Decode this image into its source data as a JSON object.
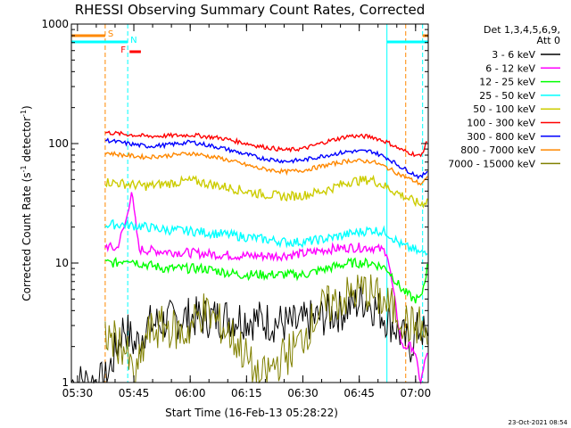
{
  "chart_data": {
    "type": "line",
    "title": "RHESSI Observing Summary Count Rates, Corrected",
    "xlabel": "Start Time (16-Feb-13 05:28:22)",
    "ylabel_main": "Corrected Count Rate (s",
    "ylabel_sup1": "-1",
    "ylabel_mid": " detector",
    "ylabel_sup2": "-1",
    "ylabel_end": ")",
    "yscale": "log",
    "ylim": [
      1,
      1000
    ],
    "y_ticks": [
      {
        "value": 1,
        "label": "1"
      },
      {
        "value": 10,
        "label": "10"
      },
      {
        "value": 100,
        "label": "100"
      },
      {
        "value": 1000,
        "label": "1000"
      }
    ],
    "xlim_minutes": [
      0,
      95
    ],
    "x_ticks": [
      {
        "minute": 1.63,
        "label": "05:30"
      },
      {
        "minute": 16.63,
        "label": "05:45"
      },
      {
        "minute": 31.63,
        "label": "06:00"
      },
      {
        "minute": 46.63,
        "label": "06:15"
      },
      {
        "minute": 61.63,
        "label": "06:30"
      },
      {
        "minute": 76.63,
        "label": "06:45"
      },
      {
        "minute": 91.63,
        "label": "07:00"
      }
    ],
    "legend_header": [
      "Det 1,3,4,5,6,9,",
      "Att 0"
    ],
    "legend_placement": "right",
    "series": [
      {
        "name": "3 - 6 keV",
        "color": "#000000",
        "x_minutes": [
          0,
          9,
          14,
          17,
          20,
          30,
          45,
          60,
          66,
          72,
          78,
          82,
          86,
          90,
          93,
          95
        ],
        "values": [
          1,
          1,
          3,
          2,
          3,
          3.5,
          3.5,
          3,
          3.5,
          4,
          5,
          4,
          3,
          2,
          3,
          2
        ]
      },
      {
        "name": "6 - 12 keV",
        "color": "#ff00ff",
        "x_minutes": [
          9,
          12,
          14.5,
          16,
          18,
          25,
          35,
          45,
          55,
          62,
          68,
          74,
          80,
          84,
          88,
          91,
          93,
          95
        ],
        "values": [
          14,
          13,
          22,
          40,
          13,
          12.5,
          12,
          11.5,
          11.5,
          12,
          13,
          13.5,
          13.5,
          12.5,
          2,
          2,
          1,
          2
        ]
      },
      {
        "name": "12 - 25 keV",
        "color": "#00ff00",
        "x_minutes": [
          9,
          12,
          15,
          18,
          25,
          35,
          45,
          55,
          62,
          68,
          74,
          80,
          84,
          88,
          91,
          93,
          95
        ],
        "values": [
          10,
          10,
          11,
          10,
          9,
          9,
          8,
          8,
          8,
          9,
          10,
          10,
          9,
          6,
          5,
          5,
          10
        ]
      },
      {
        "name": "25 - 50 keV",
        "color": "#00ffff",
        "x_minutes": [
          9,
          14,
          20,
          25,
          32,
          40,
          50,
          57,
          62,
          68,
          74,
          80,
          84,
          88,
          91,
          93,
          95
        ],
        "values": [
          21,
          21,
          20,
          19,
          18.5,
          17.5,
          16,
          15,
          15,
          16,
          17.5,
          19,
          18,
          14,
          13,
          12,
          13
        ]
      },
      {
        "name": "50 - 100 keV",
        "color": "#cccc00",
        "x_minutes": [
          9,
          14,
          20,
          25,
          32,
          40,
          50,
          57,
          62,
          68,
          74,
          80,
          84,
          88,
          91,
          93,
          95
        ],
        "values": [
          48,
          46,
          44,
          46,
          49,
          44,
          38,
          36,
          37,
          41,
          48,
          50,
          43,
          37,
          33,
          31,
          34
        ]
      },
      {
        "name": "100 - 300 keV",
        "color": "#ff0000",
        "x_minutes": [
          9,
          14,
          20,
          25,
          32,
          40,
          50,
          57,
          62,
          68,
          74,
          80,
          84,
          88,
          91,
          93,
          95
        ],
        "values": [
          124,
          120,
          115,
          116,
          118,
          111,
          95,
          88,
          91,
          104,
          116,
          114,
          103,
          88,
          82,
          78,
          110
        ]
      },
      {
        "name": "300 - 800 keV",
        "color": "#0000ff",
        "x_minutes": [
          9,
          14,
          20,
          25,
          32,
          40,
          50,
          57,
          62,
          68,
          74,
          80,
          84,
          88,
          91,
          93,
          95
        ],
        "values": [
          107,
          101,
          95,
          97,
          103,
          92,
          76,
          71,
          73,
          80,
          86,
          86,
          76,
          63,
          56,
          52,
          60
        ]
      },
      {
        "name": "800 - 7000 keV",
        "color": "#ff8800",
        "x_minutes": [
          9,
          14,
          20,
          25,
          32,
          40,
          50,
          57,
          62,
          68,
          74,
          80,
          84,
          88,
          91,
          93,
          95
        ],
        "values": [
          84,
          80,
          77,
          79,
          83,
          75,
          62,
          58,
          60,
          66,
          72,
          71,
          63,
          54,
          49,
          46,
          52
        ]
      },
      {
        "name": "7000 - 15000 keV",
        "color": "#808000",
        "x_minutes": [
          9,
          14,
          17,
          20,
          25,
          30,
          35,
          40,
          45,
          50,
          55,
          60,
          66,
          72,
          78,
          82,
          86,
          90,
          93,
          95
        ],
        "values": [
          2.5,
          2,
          1,
          2.5,
          3,
          2.5,
          4,
          3,
          2,
          1,
          1.5,
          2,
          4,
          5,
          6,
          5,
          4,
          3,
          3,
          2
        ]
      }
    ],
    "vertical_markers": [
      {
        "minute": 0,
        "color": "#00ffff",
        "style": "solid"
      },
      {
        "minute": 9,
        "color": "#ff8800",
        "style": "dashed"
      },
      {
        "minute": 15,
        "color": "#00ffff",
        "style": "dashed"
      },
      {
        "minute": 84,
        "color": "#00ffff",
        "style": "solid"
      },
      {
        "minute": 89,
        "color": "#ff8800",
        "style": "dashed"
      },
      {
        "minute": 93.5,
        "color": "#00ffff",
        "style": "dashed"
      }
    ],
    "flags": [
      {
        "label": "S",
        "color": "#ff8800",
        "x_minutes": [
          0,
          9
        ]
      },
      {
        "label": "N",
        "color": "#00ffff",
        "x_minutes": [
          0,
          15
        ]
      },
      {
        "label": "F",
        "color": "#ff0000",
        "x_minutes": [
          15.5,
          18.5
        ]
      }
    ],
    "flag_bars_right": [
      {
        "color": "#00ffff",
        "x_minutes": [
          84,
          95
        ]
      },
      {
        "color": "#ff8800",
        "x_minutes": [
          93.5,
          95
        ]
      }
    ]
  },
  "timestamp": "23-Oct-2021 08:54"
}
